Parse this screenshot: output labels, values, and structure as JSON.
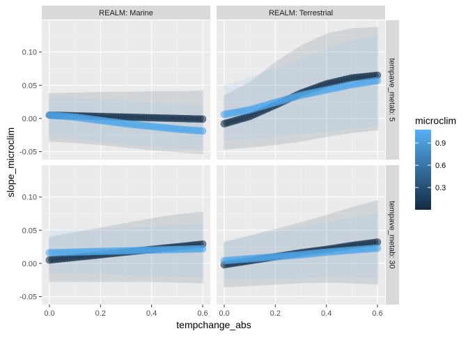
{
  "chart_data": {
    "type": "line",
    "xlabel": "tempchange_abs",
    "ylabel": "slope_microclim",
    "x_ticks": [
      0.0,
      0.2,
      0.4,
      0.6
    ],
    "x_tick_labels": [
      "0.0",
      "0.2",
      "0.4",
      "0.6"
    ],
    "y_ticks": [
      -0.05,
      0.0,
      0.05,
      0.1
    ],
    "y_tick_labels": [
      "-0.05",
      "0.00",
      "0.05",
      "0.10"
    ],
    "xlim": [
      -0.03,
      0.63
    ],
    "ylim": [
      -0.062,
      0.148
    ],
    "legend": {
      "title": "microclim",
      "placement": "right",
      "ticks": [
        0.3,
        0.6,
        0.9
      ],
      "tick_labels": [
        "0.3",
        "0.6",
        "0.9"
      ],
      "range": [
        0.0,
        1.08
      ],
      "color_low": "#132b43",
      "color_high": "#56b1f7"
    },
    "facet_cols": [
      "REALM: Marine",
      "REALM: Terrestrial"
    ],
    "facet_rows": [
      "tempave_metab: 5",
      "tempave_metab: 30"
    ],
    "x": [
      0.0,
      0.1,
      0.2,
      0.3,
      0.4,
      0.5,
      0.6
    ],
    "panels": [
      {
        "col": 0,
        "row": 0,
        "series": [
          {
            "microclim": 0.05,
            "y": [
              0.005,
              0.004,
              0.003,
              0.002,
              0.001,
              0.0,
              -0.001
            ],
            "lower": [
              -0.035,
              -0.037,
              -0.04,
              -0.044,
              -0.048,
              -0.051,
              -0.054
            ],
            "upper": [
              0.038,
              0.039,
              0.04,
              0.04,
              0.041,
              0.041,
              0.042
            ]
          },
          {
            "microclim": 1.0,
            "y": [
              0.005,
              0.002,
              -0.003,
              -0.008,
              -0.012,
              -0.016,
              -0.019
            ],
            "lower": [
              -0.028,
              -0.031,
              -0.035,
              -0.039,
              -0.042,
              -0.045,
              -0.047
            ],
            "upper": [
              0.032,
              0.031,
              0.029,
              0.027,
              0.024,
              0.022,
              0.02
            ]
          }
        ]
      },
      {
        "col": 1,
        "row": 0,
        "series": [
          {
            "microclim": 0.05,
            "y": [
              -0.008,
              0.003,
              0.02,
              0.038,
              0.052,
              0.061,
              0.065
            ],
            "lower": [
              -0.047,
              -0.044,
              -0.04,
              -0.035,
              -0.028,
              -0.022,
              -0.018
            ],
            "upper": [
              0.035,
              0.055,
              0.085,
              0.11,
              0.128,
              0.136,
              0.138
            ]
          },
          {
            "microclim": 1.0,
            "y": [
              0.006,
              0.013,
              0.024,
              0.035,
              0.043,
              0.051,
              0.057
            ],
            "lower": [
              -0.033,
              -0.031,
              -0.028,
              -0.024,
              -0.02,
              -0.016,
              -0.012
            ],
            "upper": [
              0.05,
              0.062,
              0.075,
              0.09,
              0.105,
              0.118,
              0.125
            ]
          }
        ]
      },
      {
        "col": 0,
        "row": 1,
        "series": [
          {
            "microclim": 0.05,
            "y": [
              0.005,
              0.009,
              0.013,
              0.017,
              0.021,
              0.025,
              0.029
            ],
            "lower": [
              -0.028,
              -0.028,
              -0.028,
              -0.028,
              -0.028,
              -0.029,
              -0.03
            ],
            "upper": [
              0.04,
              0.047,
              0.054,
              0.061,
              0.068,
              0.074,
              0.078
            ]
          },
          {
            "microclim": 1.0,
            "y": [
              0.016,
              0.017,
              0.018,
              0.019,
              0.02,
              0.021,
              0.022
            ],
            "lower": [
              -0.014,
              -0.015,
              -0.016,
              -0.018,
              -0.019,
              -0.02,
              -0.021
            ],
            "upper": [
              0.05,
              0.051,
              0.052,
              0.054,
              0.056,
              0.058,
              0.06
            ]
          }
        ]
      },
      {
        "col": 1,
        "row": 1,
        "series": [
          {
            "microclim": 0.05,
            "y": [
              -0.002,
              0.004,
              0.01,
              0.016,
              0.021,
              0.027,
              0.032
            ],
            "lower": [
              -0.036,
              -0.034,
              -0.032,
              -0.03,
              -0.029,
              -0.03,
              -0.032
            ],
            "upper": [
              0.032,
              0.042,
              0.052,
              0.062,
              0.073,
              0.085,
              0.095
            ]
          },
          {
            "microclim": 1.0,
            "y": [
              0.004,
              0.007,
              0.01,
              0.013,
              0.017,
              0.02,
              0.023
            ],
            "lower": [
              -0.025,
              -0.024,
              -0.023,
              -0.022,
              -0.021,
              -0.021,
              -0.022
            ],
            "upper": [
              0.034,
              0.041,
              0.048,
              0.055,
              0.062,
              0.069,
              0.075
            ]
          }
        ]
      }
    ]
  }
}
